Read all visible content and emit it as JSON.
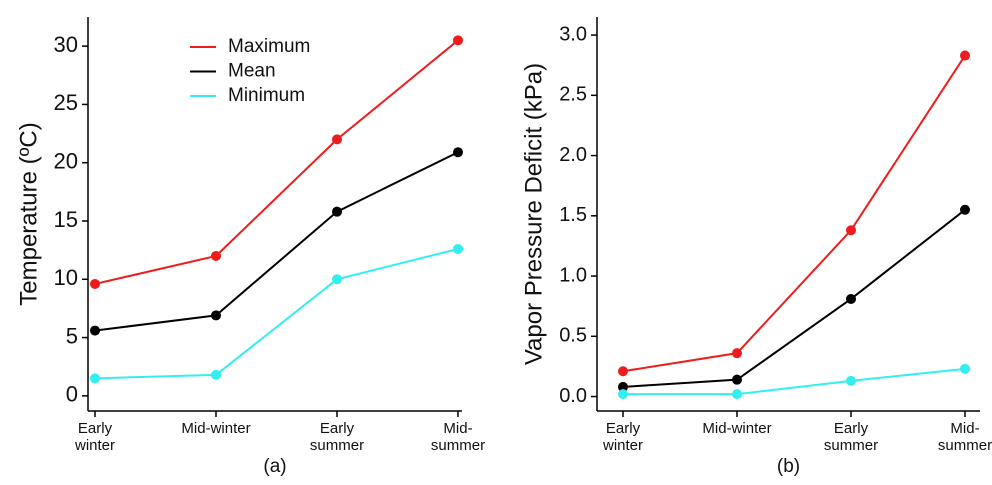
{
  "chart_data": [
    {
      "type": "line",
      "title": "(a)",
      "ylabel": "Temperature (ºC)",
      "categories": [
        "Early\nwinter",
        "Mid-winter",
        "Early\nsummer",
        "Mid-\nsummer"
      ],
      "series": [
        {
          "name": "Maximum",
          "color": "#ee1c1c",
          "values": [
            9.6,
            12,
            22,
            30.5
          ]
        },
        {
          "name": "Mean",
          "color": "#000000",
          "values": [
            5.6,
            6.9,
            15.8,
            20.9
          ]
        },
        {
          "name": "Minimum",
          "color": "#33eeee",
          "values": [
            1.5,
            1.8,
            10,
            12.6
          ]
        }
      ],
      "ylim": [
        -1.3,
        32.5
      ],
      "yticks": [
        0,
        5,
        10,
        15,
        20,
        25,
        30
      ],
      "legend": "top"
    },
    {
      "type": "line",
      "title": "(b)",
      "ylabel": "Vapor Pressure Deficit (kPa)",
      "categories": [
        "Early\nwinter",
        "Mid-winter",
        "Early\nsummer",
        "Mid-\nsummer"
      ],
      "series": [
        {
          "color": "#ee1c1c",
          "values": [
            0.21,
            0.36,
            1.38,
            2.83
          ]
        },
        {
          "color": "#000000",
          "values": [
            0.08,
            0.14,
            0.81,
            1.55
          ]
        },
        {
          "color": "#33eeee",
          "values": [
            0.02,
            0.02,
            0.13,
            0.23
          ]
        }
      ],
      "ylim": [
        -0.12,
        3.15
      ],
      "yticks": [
        {
          "value": 0,
          "label": "0.0"
        },
        {
          "value": 0.5,
          "label": "0.5"
        },
        {
          "value": 1,
          "label": "1.0"
        },
        {
          "value": 1.5,
          "label": "1.5"
        },
        {
          "value": 2,
          "label": "2.0"
        },
        {
          "value": 2.5,
          "label": "2.5"
        },
        {
          "value": 3,
          "label": "3.0"
        }
      ]
    }
  ]
}
